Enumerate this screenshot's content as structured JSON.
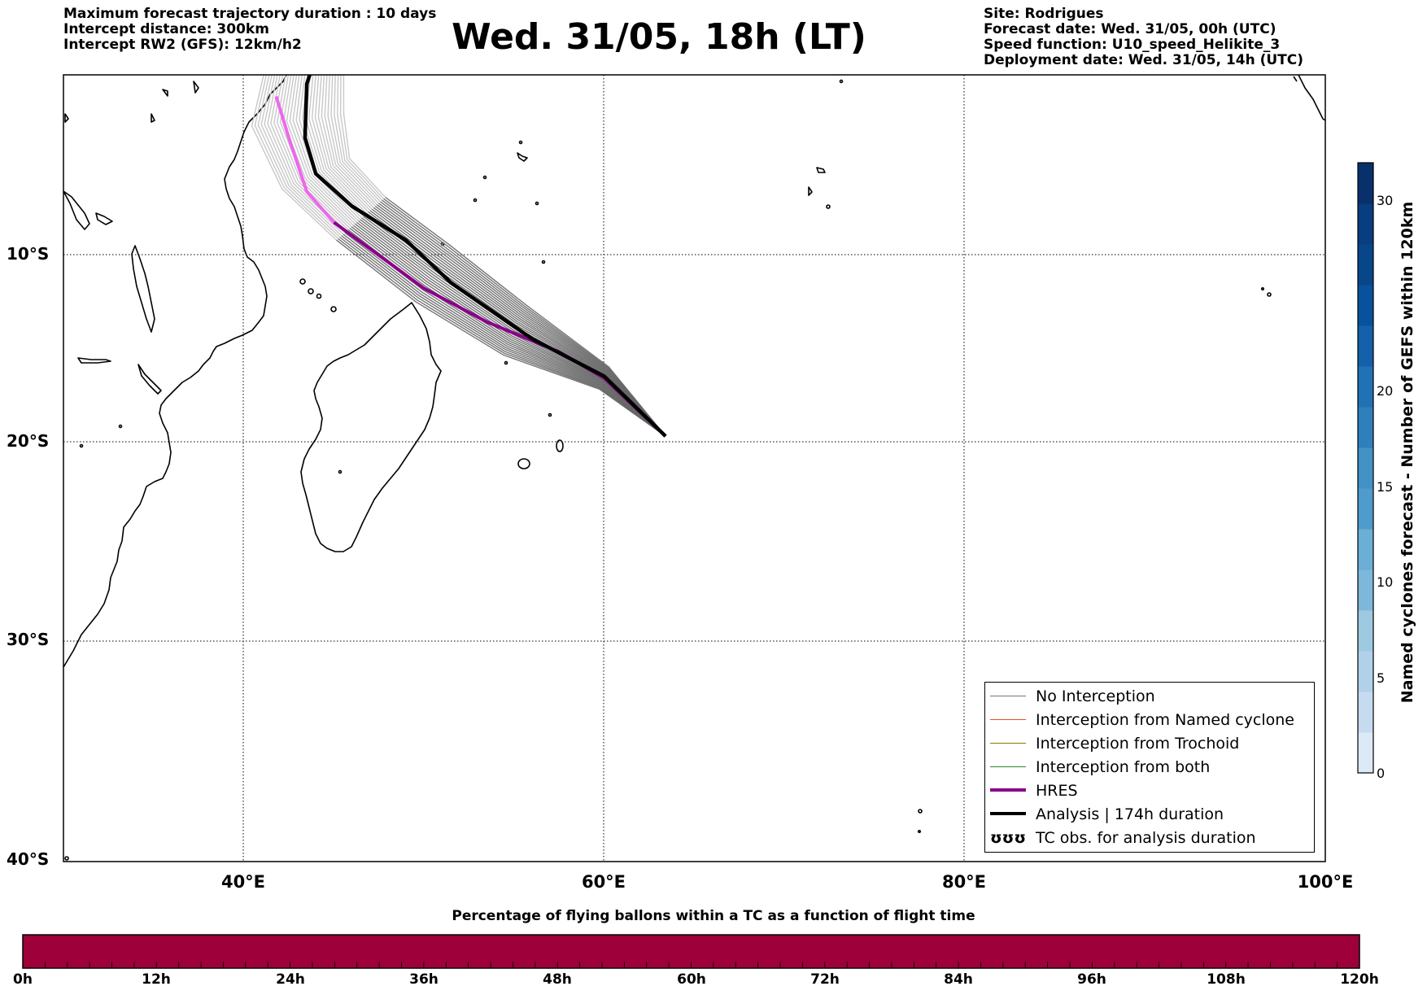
{
  "header_left": [
    "Maximum forecast trajectory duration : 10 days",
    "Intercept distance: 300km",
    "Intercept RW2 (GFS):  12km/h2"
  ],
  "title": "Wed. 31/05, 18h (LT)",
  "header_right": [
    "Site: Rodrigues",
    "Forecast date: Wed. 31/05, 00h (UTC)",
    "Speed function: U10_speed_Helikite_3",
    "Deployment date: Wed. 31/05, 14h (UTC)"
  ],
  "map": {
    "lon_range": [
      30,
      100
    ],
    "lat_range": [
      -40,
      1
    ],
    "y_ticks": [
      "10°S",
      "20°S",
      "30°S",
      "40°S"
    ],
    "x_ticks": [
      "40°E",
      "60°E",
      "80°E",
      "100°E"
    ],
    "launch_site": {
      "lon": 63.4,
      "lat": -19.7
    },
    "analysis_track": [
      [
        63.4,
        -19.7
      ],
      [
        60,
        -16.5
      ],
      [
        56,
        -14.5
      ],
      [
        51.5,
        -11.5
      ],
      [
        49,
        -9.2
      ],
      [
        46,
        -7.3
      ],
      [
        44,
        -5.5
      ],
      [
        43.4,
        -3.5
      ],
      [
        43.5,
        -0.5
      ],
      [
        44,
        1
      ]
    ],
    "hres_track": [
      [
        63.4,
        -19.7
      ],
      [
        60,
        -16.6
      ],
      [
        57.5,
        -15.2
      ],
      [
        53.5,
        -13.6
      ],
      [
        50,
        -11.8
      ],
      [
        45,
        -8.2
      ],
      [
        43.5,
        -6.5
      ],
      [
        42.5,
        -3.5
      ],
      [
        41.8,
        -1.2
      ]
    ],
    "colors": {
      "ensemble_dark": "#666666",
      "ensemble_light": "#c8c8c8",
      "hres": "#8b008b",
      "hres_late": "#ee66ee",
      "analysis": "#000000"
    }
  },
  "legend": {
    "items": [
      {
        "label": "No Interception",
        "color": "#777777",
        "style": "thin"
      },
      {
        "label": "Interception from Named cyclone",
        "color": "#e8541a",
        "style": "thin"
      },
      {
        "label": "Interception from Trochoid",
        "color": "#8b7a00",
        "style": "thin"
      },
      {
        "label": "Interception from both",
        "color": "#2a8a2a",
        "style": "thin"
      },
      {
        "label": "HRES",
        "color": "#8b008b",
        "style": "thick"
      },
      {
        "label": "Analysis | 174h duration",
        "color": "#000000",
        "style": "thick"
      },
      {
        "label": "TC obs. for analysis duration",
        "color": "#000000",
        "style": "symbol",
        "symbol": "ʊʊʊ"
      }
    ]
  },
  "colorbar": {
    "title": "Named cyclones forecast - Number of GEFS within 120km",
    "ticks": [
      "0",
      "5",
      "10",
      "15",
      "20",
      "30"
    ],
    "range": [
      0,
      32
    ],
    "colors": [
      "#dce9f6",
      "#c6dbef",
      "#b0d1e9",
      "#9ecae1",
      "#7db8da",
      "#6baed6",
      "#4f9bcb",
      "#4292c6",
      "#2f7fbd",
      "#2171b5",
      "#1460aa",
      "#08519c",
      "#08468a",
      "#083d7f",
      "#08306b"
    ]
  },
  "time_bar": {
    "title": "Percentage of flying ballons within a TC as a function of flight time",
    "ticks": [
      "0h",
      "12h",
      "24h",
      "36h",
      "48h",
      "60h",
      "72h",
      "84h",
      "96h",
      "108h",
      "120h"
    ],
    "fill_color": "#9e003a"
  }
}
